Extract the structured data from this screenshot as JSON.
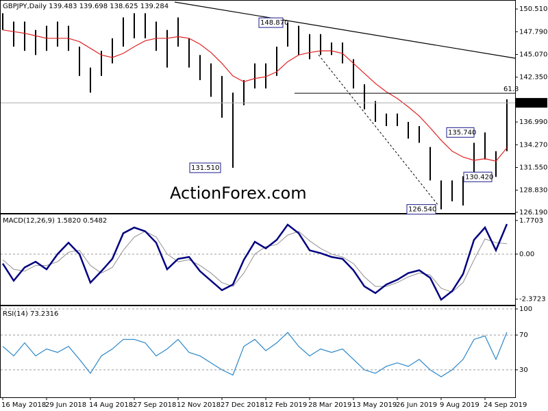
{
  "chart_data": [
    {
      "type": "hlbar",
      "title": "GBPJPY,Daily  139.483 139.698 138.625 139.284",
      "watermark": "ActionForex.com",
      "categories": [
        "16 May 2018",
        null,
        null,
        null,
        "29 Jun 2018",
        null,
        null,
        null,
        "14 Aug 2018",
        null,
        null,
        null,
        "27 Sep 2018",
        null,
        null,
        null,
        "12 Nov 2018",
        null,
        null,
        null,
        "27 Dec 2018",
        null,
        null,
        null,
        "12 Feb 2019",
        null,
        null,
        null,
        "28 Mar 2019",
        null,
        null,
        null,
        "13 May 2019",
        null,
        null,
        null,
        "26 Jun 2019",
        null,
        null,
        null,
        "9 Aug 2019",
        null,
        null,
        null,
        "24 Sep 2019",
        null,
        null
      ],
      "high": [
        150.0,
        149.0,
        149.0,
        148.0,
        148.5,
        149.0,
        148.5,
        146.0,
        143.5,
        145.5,
        147.0,
        149.5,
        150.0,
        150.0,
        149.0,
        148.0,
        149.5,
        147.0,
        145.0,
        144.0,
        142.5,
        140.5,
        142.0,
        144.0,
        144.0,
        146.0,
        148.87,
        148.5,
        147.5,
        147.5,
        146.5,
        146.5,
        144.5,
        141.5,
        139.5,
        138.0,
        138.0,
        137.0,
        136.5,
        134.0,
        130.0,
        130.0,
        130.5,
        134.5,
        135.74,
        133.5,
        139.698
      ],
      "low": [
        148.0,
        146.0,
        145.5,
        145.0,
        145.5,
        146.0,
        145.5,
        142.5,
        140.5,
        142.5,
        144.0,
        146.0,
        147.0,
        147.0,
        145.5,
        143.5,
        146.0,
        143.5,
        142.0,
        140.0,
        137.5,
        131.51,
        139.0,
        141.0,
        141.0,
        142.5,
        146.0,
        145.0,
        144.5,
        145.0,
        145.0,
        144.0,
        141.0,
        138.5,
        137.0,
        136.5,
        136.5,
        135.0,
        134.5,
        130.0,
        126.54,
        127.5,
        127.0,
        130.0,
        132.5,
        130.42,
        133.5
      ],
      "color": "#000000",
      "ma": {
        "color": "#e02020",
        "values": [
          148.0,
          147.8,
          147.6,
          147.3,
          147.0,
          147.0,
          147.0,
          146.6,
          145.8,
          145.0,
          144.7,
          145.2,
          146.0,
          146.7,
          147.0,
          147.0,
          147.2,
          147.0,
          146.3,
          145.3,
          144.0,
          142.5,
          141.8,
          142.2,
          142.4,
          143.0,
          144.2,
          145.0,
          145.3,
          145.5,
          145.5,
          145.2,
          144.0,
          142.8,
          141.6,
          140.6,
          139.8,
          138.8,
          137.7,
          136.3,
          134.8,
          133.5,
          132.8,
          132.4,
          132.6,
          132.3,
          133.9
        ]
      },
      "ylim": [
        126.1,
        151.5
      ],
      "yticks": [
        {
          "value": 150.51,
          "label": "150.510"
        },
        {
          "value": 147.79,
          "label": "147.790"
        },
        {
          "value": 145.07,
          "label": "145.070"
        },
        {
          "value": 142.35,
          "label": "142.350"
        },
        {
          "value": 136.99,
          "label": "136.990"
        },
        {
          "value": 134.27,
          "label": "134.270"
        },
        {
          "value": 131.55,
          "label": "131.550"
        },
        {
          "value": 128.83,
          "label": "128.830"
        },
        {
          "value": 126.19,
          "label": "126.190"
        }
      ],
      "last": {
        "value": 139.284,
        "label": "139.284"
      },
      "fib": {
        "value": 140.43,
        "label": "61.8"
      },
      "annotations": [
        {
          "value": 148.87,
          "label": "148.870"
        },
        {
          "value": 131.51,
          "label": "131.510"
        },
        {
          "value": 135.74,
          "label": "135.740"
        },
        {
          "value": 130.42,
          "label": "130.420"
        },
        {
          "value": 126.54,
          "label": "126.540"
        }
      ]
    },
    {
      "type": "macd",
      "title": "MACD(12,26,9) 1.5820 0.5482",
      "series": [
        {
          "color": "#000080",
          "values": [
            -0.5,
            -1.4,
            -0.7,
            -0.4,
            -0.8,
            0.0,
            0.6,
            0.0,
            -1.5,
            -0.9,
            -0.25,
            1.1,
            1.4,
            1.2,
            0.6,
            -0.8,
            -0.25,
            -0.15,
            -0.9,
            -1.4,
            -1.9,
            -1.6,
            -0.3,
            0.65,
            0.3,
            0.75,
            1.55,
            1.1,
            0.2,
            0.05,
            -0.15,
            -0.25,
            -0.85,
            -1.7,
            -2.05,
            -1.6,
            -1.35,
            -1.0,
            -0.85,
            -1.25,
            -2.4,
            -1.95,
            -1.05,
            0.75,
            1.4,
            0.2,
            1.582
          ]
        },
        {
          "color": "#909090",
          "values": [
            -0.3,
            -0.8,
            -0.9,
            -0.6,
            -0.6,
            -0.4,
            0.1,
            0.2,
            -0.6,
            -1.0,
            -0.7,
            0.2,
            0.9,
            1.2,
            0.9,
            0.0,
            -0.4,
            -0.3,
            -0.6,
            -1.0,
            -1.5,
            -1.7,
            -1.0,
            0.0,
            0.4,
            0.5,
            1.0,
            1.2,
            0.7,
            0.3,
            0.0,
            -0.15,
            -0.5,
            -1.2,
            -1.7,
            -1.7,
            -1.5,
            -1.2,
            -1.0,
            -1.1,
            -1.8,
            -2.0,
            -1.5,
            -0.3,
            0.8,
            0.6,
            0.5482
          ]
        }
      ],
      "ylim": [
        -2.67,
        2.09
      ],
      "yticks": [
        1.7703,
        {
          "value": 0,
          "label": "0.00"
        },
        -2.3723
      ],
      "zero_line": true
    },
    {
      "type": "rsi",
      "title": "RSI(14) 73.2316",
      "series": [
        {
          "color": "#2a86c8",
          "values": [
            57,
            46,
            61,
            46,
            54,
            50,
            57,
            42,
            26,
            46,
            54,
            65,
            65,
            61,
            46,
            54,
            65,
            50,
            46,
            38,
            30,
            24,
            57,
            65,
            52,
            61,
            73,
            57,
            46,
            54,
            50,
            54,
            42,
            30,
            26,
            34,
            38,
            34,
            42,
            30,
            22,
            30,
            42,
            65,
            69,
            42,
            73.2316
          ]
        }
      ],
      "ylim": [
        0,
        100
      ],
      "yticks": [
        100,
        70,
        30
      ],
      "grid": "dashed"
    }
  ]
}
